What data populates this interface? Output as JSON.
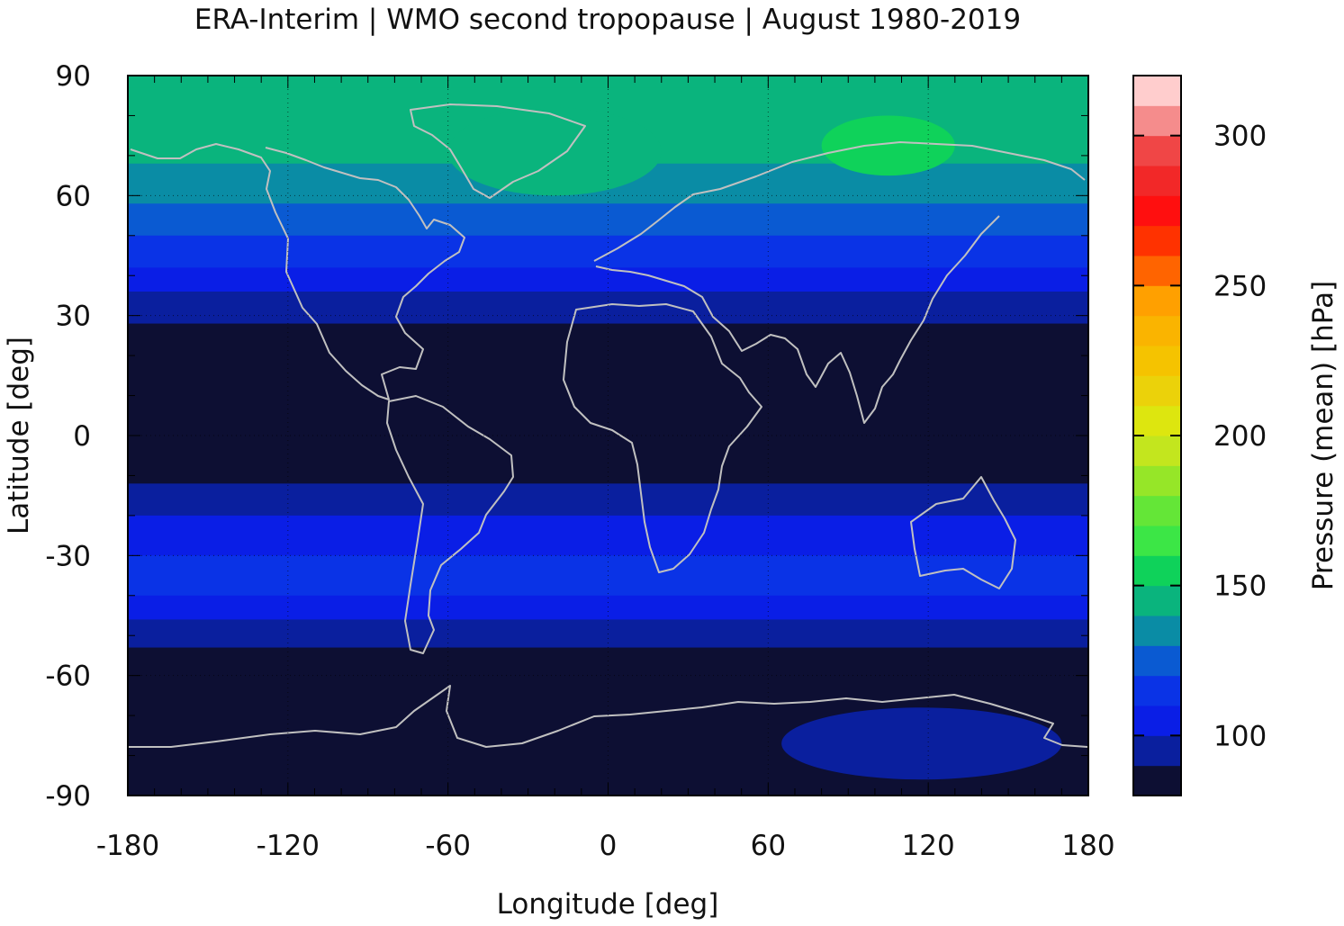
{
  "chart_data": {
    "type": "heatmap",
    "title": "ERA-Interim | WMO second tropopause | August 1980-2019",
    "xlabel": "Longitude [deg]",
    "ylabel": "Latitude [deg]",
    "colorbar_label": "Pressure (mean) [hPa]",
    "xlim": [
      -180,
      180
    ],
    "ylim": [
      -90,
      90
    ],
    "x_ticks": [
      -180,
      -120,
      -60,
      0,
      60,
      120,
      180
    ],
    "y_ticks": [
      90,
      60,
      30,
      0,
      -30,
      -60,
      -90
    ],
    "x_tick_labels": [
      "-180",
      "-120",
      "-60",
      "0",
      "60",
      "120",
      "180"
    ],
    "y_tick_labels": [
      "90",
      "60",
      "30",
      "0",
      "-30",
      "-60",
      "-90"
    ],
    "grid": true,
    "colorbar": {
      "range": [
        80,
        320
      ],
      "ticks": [
        100,
        150,
        200,
        250,
        300
      ],
      "tick_labels": [
        "100",
        "150",
        "200",
        "250",
        "300"
      ],
      "levels": [
        {
          "from": 80,
          "to": 90,
          "color": "#0d0f33"
        },
        {
          "from": 90,
          "to": 100,
          "color": "#0a1f9e"
        },
        {
          "from": 100,
          "to": 110,
          "color": "#0a1ee6"
        },
        {
          "from": 110,
          "to": 120,
          "color": "#0a33e6"
        },
        {
          "from": 120,
          "to": 130,
          "color": "#0a5ad2"
        },
        {
          "from": 130,
          "to": 140,
          "color": "#0a8ca5"
        },
        {
          "from": 140,
          "to": 150,
          "color": "#0ab47d"
        },
        {
          "from": 150,
          "to": 160,
          "color": "#0fd25a"
        },
        {
          "from": 160,
          "to": 170,
          "color": "#3ce646"
        },
        {
          "from": 170,
          "to": 180,
          "color": "#64e637"
        },
        {
          "from": 180,
          "to": 190,
          "color": "#96e628"
        },
        {
          "from": 190,
          "to": 200,
          "color": "#c3e61e"
        },
        {
          "from": 200,
          "to": 210,
          "color": "#dde60f"
        },
        {
          "from": 210,
          "to": 220,
          "color": "#ebd20a"
        },
        {
          "from": 220,
          "to": 230,
          "color": "#f5c300"
        },
        {
          "from": 230,
          "to": 240,
          "color": "#fab400"
        },
        {
          "from": 240,
          "to": 250,
          "color": "#ffa000"
        },
        {
          "from": 250,
          "to": 260,
          "color": "#ff6400"
        },
        {
          "from": 260,
          "to": 270,
          "color": "#ff3200"
        },
        {
          "from": 270,
          "to": 280,
          "color": "#ff0f0f"
        },
        {
          "from": 280,
          "to": 290,
          "color": "#f22828"
        },
        {
          "from": 290,
          "to": 300,
          "color": "#f04646"
        },
        {
          "from": 300,
          "to": 310,
          "color": "#f58c8c"
        },
        {
          "from": 310,
          "to": 320,
          "color": "#ffcdcd"
        }
      ]
    },
    "zonal_bands": [
      {
        "lat_from": 90,
        "lat_to": 87,
        "value": 145
      },
      {
        "lat_from": 87,
        "lat_to": 68,
        "value": 145
      },
      {
        "lat_from": 68,
        "lat_to": 58,
        "value": 135
      },
      {
        "lat_from": 58,
        "lat_to": 50,
        "value": 125
      },
      {
        "lat_from": 50,
        "lat_to": 42,
        "value": 115
      },
      {
        "lat_from": 42,
        "lat_to": 36,
        "value": 105
      },
      {
        "lat_from": 36,
        "lat_to": 28,
        "value": 95
      },
      {
        "lat_from": 28,
        "lat_to": -12,
        "value": 85
      },
      {
        "lat_from": -12,
        "lat_to": -20,
        "value": 95
      },
      {
        "lat_from": -20,
        "lat_to": -30,
        "value": 105
      },
      {
        "lat_from": -30,
        "lat_to": -40,
        "value": 115
      },
      {
        "lat_from": -40,
        "lat_to": -46,
        "value": 105
      },
      {
        "lat_from": -46,
        "lat_to": -53,
        "value": 95
      },
      {
        "lat_from": -53,
        "lat_to": -90,
        "value": 85
      }
    ],
    "regional_features": [
      {
        "name": "Greenland / North Atlantic",
        "lon": [
          -60,
          20
        ],
        "lat": [
          60,
          82
        ],
        "value": 145
      },
      {
        "name": "Siberia",
        "lon": [
          80,
          130
        ],
        "lat": [
          65,
          80
        ],
        "value": 155
      },
      {
        "name": "East Antarctica",
        "lon": [
          65,
          170
        ],
        "lat": [
          -86,
          -68
        ],
        "value": 95
      }
    ],
    "overlay": "coastlines"
  }
}
